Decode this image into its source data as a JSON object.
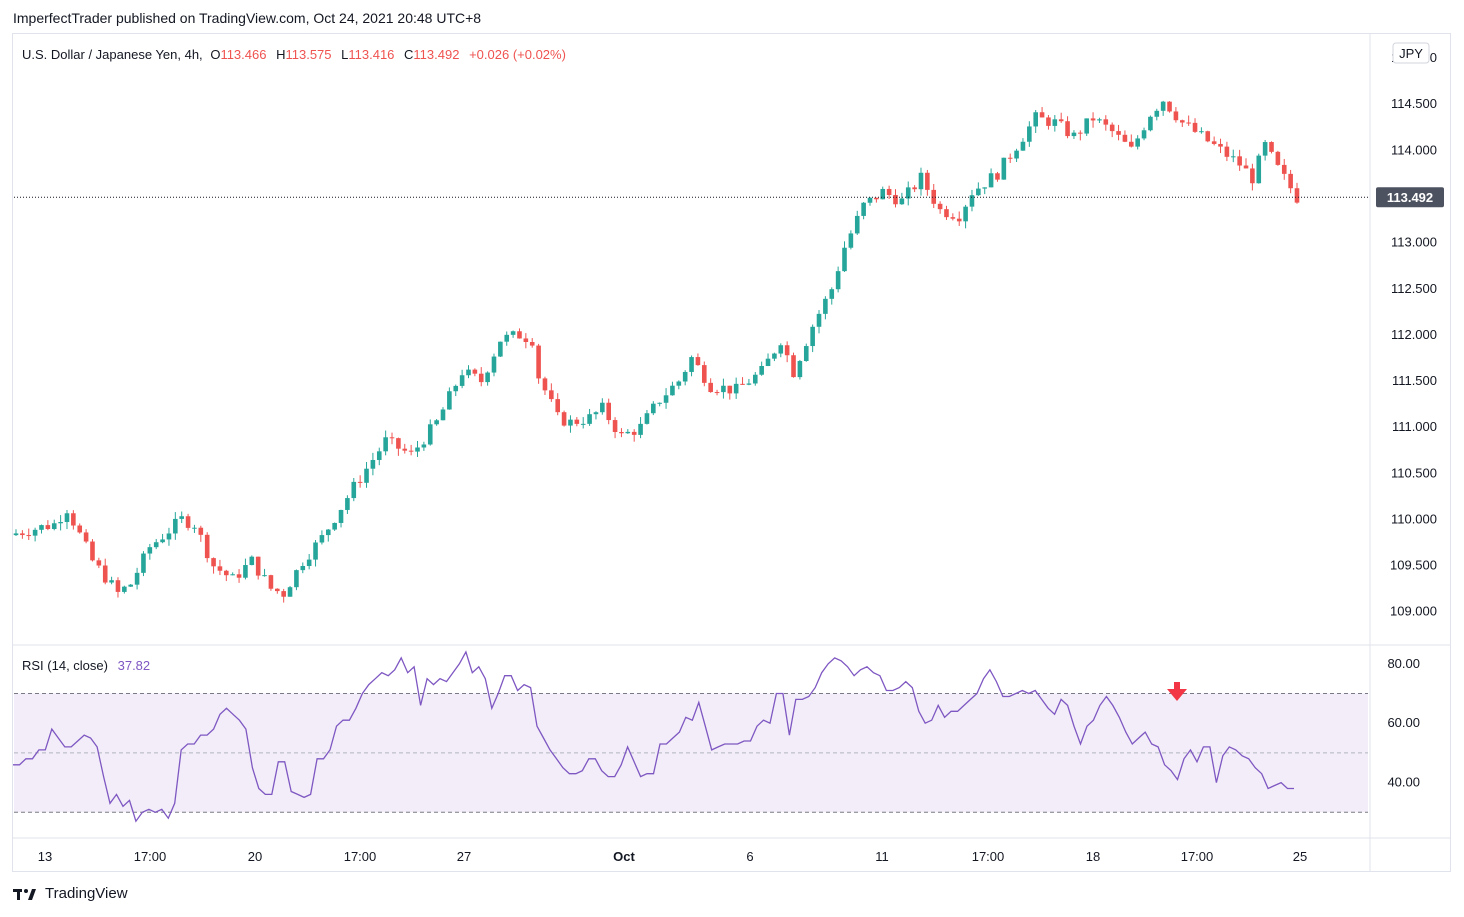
{
  "publisher": "ImperfectTrader published on TradingView.com, Oct 24, 2021 20:48 UTC+8",
  "legend": {
    "symbol": "U.S. Dollar / Japanese Yen, 4h,",
    "o_label": "O",
    "o": "113.466",
    "h_label": "H",
    "h": "113.575",
    "l_label": "L",
    "l": "113.416",
    "c_label": "C",
    "c": "113.492",
    "change": "+0.026 (+0.02%)"
  },
  "currency_badge": "JPY",
  "last_price": "113.492",
  "rsi": {
    "label": "RSI (14, close)",
    "value": "37.82"
  },
  "footer_brand": "TradingView",
  "colors": {
    "up": "#26a69a",
    "down": "#ef5350",
    "rsi_line": "#7e57c2",
    "rsi_band": "#ede7f6",
    "arrow": "#f23645",
    "last_badge": "#4d5260"
  },
  "chart_data": [
    {
      "type": "candlestick",
      "title": "U.S. Dollar / Japanese Yen, 4h",
      "y_ticks": [
        "115.000",
        "114.500",
        "114.000",
        "113.500",
        "113.000",
        "112.500",
        "112.000",
        "111.500",
        "111.000",
        "110.500",
        "110.000",
        "109.500",
        "109.000"
      ],
      "ylim": [
        108.65,
        115.25
      ],
      "x_ticks": [
        "13",
        "17:00",
        "20",
        "17:00",
        "27",
        "Oct",
        "6",
        "11",
        "17:00",
        "18",
        "17:00",
        "25"
      ],
      "last_price": 113.492,
      "close_path": [
        [
          0,
          109.85
        ],
        [
          6,
          109.95
        ],
        [
          8,
          110.12
        ],
        [
          12,
          109.55
        ],
        [
          16,
          109.2
        ],
        [
          18,
          109.3
        ],
        [
          21,
          109.7
        ],
        [
          26,
          110.0
        ],
        [
          28,
          109.95
        ],
        [
          31,
          109.5
        ],
        [
          34,
          109.35
        ],
        [
          37,
          109.55
        ],
        [
          40,
          109.25
        ],
        [
          42,
          109.2
        ],
        [
          45,
          109.55
        ],
        [
          48,
          109.8
        ],
        [
          53,
          110.35
        ],
        [
          58,
          110.85
        ],
        [
          62,
          110.7
        ],
        [
          66,
          111.05
        ],
        [
          70,
          111.6
        ],
        [
          73,
          111.5
        ],
        [
          76,
          111.95
        ],
        [
          79,
          112.0
        ],
        [
          81,
          111.95
        ],
        [
          82,
          111.55
        ],
        [
          85,
          111.1
        ],
        [
          87,
          111.05
        ],
        [
          90,
          111.1
        ],
        [
          92,
          111.2
        ],
        [
          95,
          110.9
        ],
        [
          98,
          111.0
        ],
        [
          101,
          111.3
        ],
        [
          104,
          111.5
        ],
        [
          106,
          111.75
        ],
        [
          109,
          111.45
        ],
        [
          113,
          111.4
        ],
        [
          117,
          111.6
        ],
        [
          120,
          111.95
        ],
        [
          122,
          111.6
        ],
        [
          125,
          112.1
        ],
        [
          128,
          112.5
        ],
        [
          130,
          112.95
        ],
        [
          133,
          113.4
        ],
        [
          136,
          113.55
        ],
        [
          139,
          113.45
        ],
        [
          142,
          113.7
        ],
        [
          145,
          113.35
        ],
        [
          148,
          113.3
        ],
        [
          150,
          113.55
        ],
        [
          154,
          113.75
        ],
        [
          157,
          114.05
        ],
        [
          160,
          114.35
        ],
        [
          163,
          114.3
        ],
        [
          166,
          114.15
        ],
        [
          169,
          114.35
        ],
        [
          172,
          114.2
        ],
        [
          175,
          114.0
        ],
        [
          178,
          114.4
        ],
        [
          180,
          114.55
        ],
        [
          183,
          114.3
        ],
        [
          186,
          114.15
        ],
        [
          189,
          114.0
        ],
        [
          192,
          113.85
        ],
        [
          194,
          113.7
        ],
        [
          196,
          114.05
        ],
        [
          198,
          113.8
        ],
        [
          201,
          113.49
        ]
      ]
    },
    {
      "type": "line",
      "title": "RSI (14, close)",
      "y_ticks": [
        "80.00",
        "60.00",
        "40.00"
      ],
      "ylim": [
        22,
        86
      ],
      "bands": [
        70,
        50,
        30
      ],
      "values": [
        46,
        46,
        48,
        48,
        51,
        51,
        58,
        55,
        52,
        52,
        54,
        56,
        55,
        52,
        42,
        33,
        36,
        32,
        34,
        27,
        30,
        31,
        30,
        31,
        28,
        33,
        51,
        53,
        53,
        56,
        56,
        58,
        63,
        65,
        63,
        61,
        58,
        45,
        38,
        36,
        36,
        47,
        47,
        37,
        36,
        35,
        36,
        48,
        48,
        51,
        59,
        61,
        61,
        65,
        70,
        73,
        75,
        77,
        76,
        78,
        82,
        77,
        79,
        66,
        75,
        73,
        75,
        74,
        77,
        80,
        84,
        77,
        79,
        75,
        65,
        70,
        76,
        76,
        71,
        73,
        72,
        59,
        55,
        51,
        48,
        45,
        43,
        43,
        44,
        48,
        48,
        44,
        42,
        42,
        46,
        52,
        47,
        42,
        43,
        43,
        53,
        53,
        55,
        57,
        62,
        61,
        67,
        59,
        51,
        52,
        53,
        53,
        53,
        54,
        54,
        59,
        61,
        60,
        70,
        70,
        56,
        68,
        68,
        69,
        72,
        77,
        80,
        82,
        81,
        79,
        76,
        78,
        79,
        77,
        76,
        71,
        71,
        72,
        74,
        72,
        64,
        60,
        61,
        66,
        62,
        64,
        64,
        66,
        68,
        70,
        75,
        78,
        74,
        69,
        69,
        70,
        71,
        70,
        71,
        68,
        65,
        63,
        68,
        66,
        59,
        53,
        59,
        61,
        66,
        69,
        66,
        62,
        57,
        53,
        55,
        57,
        53,
        52,
        46,
        44,
        41,
        48,
        51,
        47,
        52,
        52,
        40,
        49,
        52,
        51,
        49,
        48,
        45,
        43,
        38,
        39,
        40,
        38,
        38
      ]
    }
  ]
}
